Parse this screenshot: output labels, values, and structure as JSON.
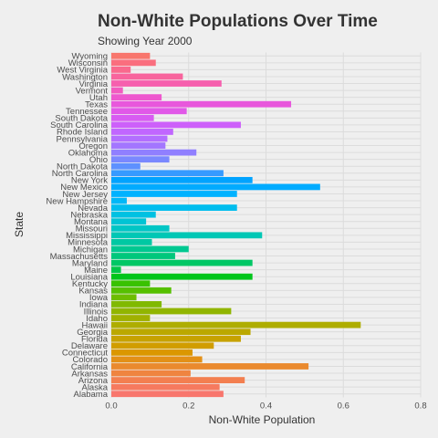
{
  "chart_data": {
    "type": "bar",
    "orientation": "horizontal",
    "title": "Non-White Populations Over Time",
    "subtitle": "Showing Year 2000",
    "xlabel": "Non-White Population",
    "ylabel": "State",
    "xlim": [
      0,
      0.8
    ],
    "x_ticks": [
      "0.0",
      "0.2",
      "0.4",
      "0.6",
      "0.8"
    ],
    "grid": true,
    "legend": "none",
    "categories": [
      "Alabama",
      "Alaska",
      "Arizona",
      "Arkansas",
      "California",
      "Colorado",
      "Connecticut",
      "Delaware",
      "Florida",
      "Georgia",
      "Hawaii",
      "Idaho",
      "Illinois",
      "Indiana",
      "Iowa",
      "Kansas",
      "Kentucky",
      "Louisiana",
      "Maine",
      "Maryland",
      "Massachusetts",
      "Michigan",
      "Minnesota",
      "Mississippi",
      "Missouri",
      "Montana",
      "Nebraska",
      "Nevada",
      "New Hampshire",
      "New Jersey",
      "New Mexico",
      "New York",
      "North Carolina",
      "North Dakota",
      "Ohio",
      "Oklahoma",
      "Oregon",
      "Pennsylvania",
      "Rhode Island",
      "South Carolina",
      "South Dakota",
      "Tennessee",
      "Texas",
      "Utah",
      "Vermont",
      "Virginia",
      "Washington",
      "West Virginia",
      "Wisconsin",
      "Wyoming"
    ],
    "values": [
      0.29,
      0.28,
      0.345,
      0.205,
      0.51,
      0.235,
      0.21,
      0.265,
      0.335,
      0.36,
      0.645,
      0.1,
      0.31,
      0.13,
      0.065,
      0.155,
      0.1,
      0.365,
      0.025,
      0.365,
      0.165,
      0.2,
      0.105,
      0.39,
      0.15,
      0.09,
      0.115,
      0.325,
      0.04,
      0.325,
      0.54,
      0.365,
      0.29,
      0.075,
      0.15,
      0.22,
      0.14,
      0.145,
      0.16,
      0.335,
      0.11,
      0.195,
      0.465,
      0.13,
      0.03,
      0.285,
      0.185,
      0.05,
      0.115,
      0.1
    ],
    "colors": [
      "#F8766D",
      "#F67A5F",
      "#F37F50",
      "#EF8440",
      "#EA8A2E",
      "#E39017",
      "#DB9700",
      "#D19D00",
      "#C7A200",
      "#BBA800",
      "#AEAD00",
      "#A0B100",
      "#91B500",
      "#80B900",
      "#6DBD00",
      "#56C000",
      "#39C200",
      "#00C51B",
      "#00C649",
      "#00C765",
      "#00C77C",
      "#00C891",
      "#00C8A3",
      "#00C7B5",
      "#00C6C5",
      "#00C4D4",
      "#00C1E2",
      "#00BDEE",
      "#00B8F8",
      "#00B2FF",
      "#00ABFF",
      "#00A3FF",
      "#369AFF",
      "#5E91FF",
      "#7A88FF",
      "#907FFF",
      "#A376FF",
      "#B36EFF",
      "#C166FF",
      "#CD60FA",
      "#D85BF2",
      "#E158E8",
      "#E857DC",
      "#EE58CE",
      "#F25BBF",
      "#F65FAE",
      "#F8649D",
      "#F9698D",
      "#FA6E7E",
      "#F8766D"
    ]
  }
}
